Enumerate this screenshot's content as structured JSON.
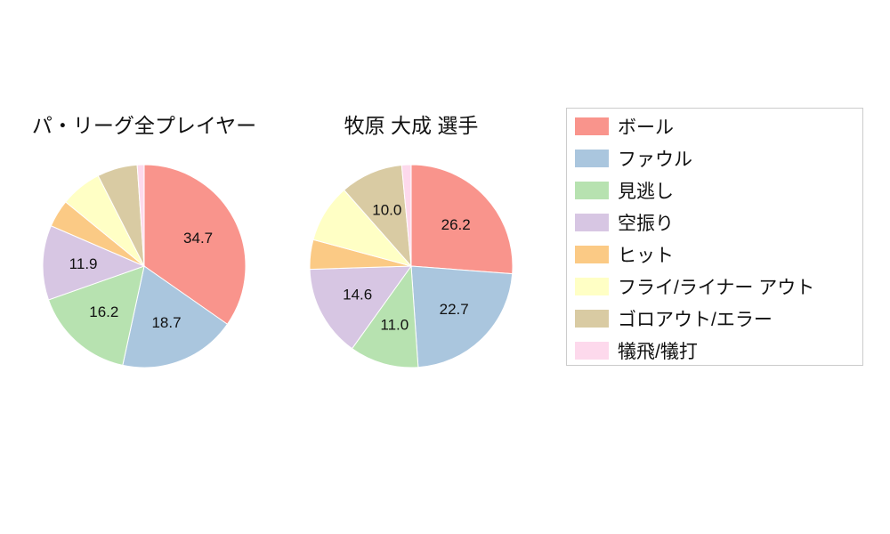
{
  "page": {
    "background": "#ffffff",
    "text_color": "#111111"
  },
  "chart_data": [
    {
      "type": "pie",
      "title": "パ・リーグ全プレイヤー",
      "categories": [
        "ボール",
        "ファウル",
        "見逃し",
        "空振り",
        "ヒット",
        "フライ/ライナー アウト",
        "ゴロアウト/エラー",
        "犠飛/犠打"
      ],
      "values": [
        34.7,
        18.7,
        16.2,
        11.9,
        4.4,
        6.6,
        6.4,
        1.1
      ],
      "colors": [
        "#f9948c",
        "#aac6de",
        "#b7e2b0",
        "#d7c6e3",
        "#fbca85",
        "#ffffc5",
        "#d9cba3",
        "#fdd9ec"
      ],
      "start_angle_deg": 90,
      "direction": "clockwise",
      "label_threshold_pct": 10,
      "label_radius_frac": 0.6,
      "visible_labels": [
        "34.7",
        "18.7",
        "16.2",
        "11.9"
      ]
    },
    {
      "type": "pie",
      "title": "牧原 大成  選手",
      "categories": [
        "ボール",
        "ファウル",
        "見逃し",
        "空振り",
        "ヒット",
        "フライ/ライナー アウト",
        "ゴロアウト/エラー",
        "犠飛/犠打"
      ],
      "values": [
        26.2,
        22.7,
        11.0,
        14.6,
        4.7,
        9.3,
        10.0,
        1.5
      ],
      "colors": [
        "#f9948c",
        "#aac6de",
        "#b7e2b0",
        "#d7c6e3",
        "#fbca85",
        "#ffffc5",
        "#d9cba3",
        "#fdd9ec"
      ],
      "start_angle_deg": 90,
      "direction": "clockwise",
      "label_threshold_pct": 10,
      "label_radius_frac": 0.6,
      "visible_labels": [
        "26.2",
        "22.7",
        "11.0",
        "14.6",
        "10.0"
      ]
    }
  ],
  "legend": {
    "position": "right",
    "items": [
      {
        "label": "ボール",
        "color": "#f9948c"
      },
      {
        "label": "ファウル",
        "color": "#aac6de"
      },
      {
        "label": "見逃し",
        "color": "#b7e2b0"
      },
      {
        "label": "空振り",
        "color": "#d7c6e3"
      },
      {
        "label": "ヒット",
        "color": "#fbca85"
      },
      {
        "label": "フライ/ライナー アウト",
        "color": "#ffffc5"
      },
      {
        "label": "ゴロアウト/エラー",
        "color": "#d9cba3"
      },
      {
        "label": "犠飛/犠打",
        "color": "#fdd9ec"
      }
    ]
  }
}
